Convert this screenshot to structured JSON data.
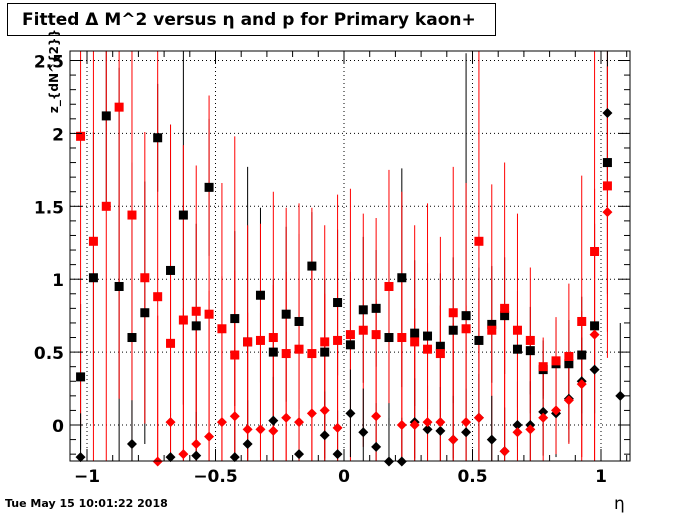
{
  "chart_data": {
    "type": "scatter",
    "title": "Fitted Δ M^2 versus η and p for Primary kaon+",
    "xlabel": "η",
    "ylabel": "z_{dN^{2}}",
    "xlim": [
      -1.05,
      1.1
    ],
    "ylim": [
      -0.25,
      2.57
    ],
    "grid": true,
    "xticks": [
      -1,
      -0.5,
      0,
      0.5,
      1
    ],
    "xtick_labels": [
      "−1",
      "−0.5",
      "0",
      "0.5",
      "1"
    ],
    "yticks": [
      0,
      0.5,
      1,
      1.5,
      2,
      2.5
    ],
    "ytick_labels": [
      "0",
      "0.5",
      "1",
      "1.5",
      "2",
      "2.5"
    ],
    "series": [
      {
        "marker": "square",
        "color": "#000000",
        "x": [
          -1.025,
          -0.975,
          -0.925,
          -0.875,
          -0.825,
          -0.775,
          -0.725,
          -0.675,
          -0.625,
          -0.575,
          -0.525,
          -0.425,
          -0.375,
          -0.325,
          -0.275,
          -0.225,
          -0.175,
          -0.125,
          -0.075,
          -0.025,
          0.025,
          0.075,
          0.125,
          0.175,
          0.225,
          0.275,
          0.325,
          0.375,
          0.425,
          0.475,
          0.525,
          0.575,
          0.625,
          0.675,
          0.725,
          0.775,
          0.825,
          0.875,
          0.925,
          0.975,
          1.025
        ],
        "y": [
          0.33,
          1.01,
          2.12,
          0.95,
          0.6,
          0.77,
          1.97,
          1.06,
          1.44,
          0.68,
          1.63,
          0.73,
          0.57,
          0.89,
          0.5,
          0.76,
          0.71,
          1.09,
          0.5,
          0.84,
          0.55,
          0.79,
          0.8,
          0.6,
          1.01,
          0.63,
          0.61,
          0.54,
          0.65,
          0.75,
          0.58,
          0.69,
          0.75,
          0.52,
          0.51,
          0.38,
          0.42,
          0.42,
          0.48,
          0.68,
          1.8
        ],
        "err": [
          0.5,
          1.0,
          0.6,
          1.5,
          1.2,
          0.9,
          0.37,
          1.0,
          1.3,
          0.7,
          0.47,
          0.6,
          1.2,
          0.6,
          0.5,
          0.6,
          0.6,
          0.37,
          0.5,
          0.5,
          0.5,
          0.5,
          0.4,
          0.6,
          0.75,
          0.5,
          0.5,
          0.5,
          0.5,
          1.8,
          0.5,
          0.4,
          0.4,
          0.4,
          0.3,
          0.2,
          0.3,
          0.3,
          0.4,
          0.7,
          0.9
        ]
      },
      {
        "marker": "square",
        "color": "#ff0000",
        "x": [
          -1.025,
          -0.975,
          -0.925,
          -0.875,
          -0.825,
          -0.775,
          -0.725,
          -0.675,
          -0.625,
          -0.575,
          -0.525,
          -0.475,
          -0.425,
          -0.375,
          -0.325,
          -0.275,
          -0.225,
          -0.175,
          -0.125,
          -0.075,
          -0.025,
          0.025,
          0.075,
          0.125,
          0.175,
          0.225,
          0.275,
          0.325,
          0.375,
          0.425,
          0.475,
          0.525,
          0.575,
          0.625,
          0.675,
          0.725,
          0.775,
          0.825,
          0.875,
          0.925,
          0.975,
          1.025
        ],
        "y": [
          1.98,
          1.26,
          1.5,
          2.18,
          1.44,
          1.01,
          0.88,
          0.56,
          0.72,
          0.78,
          0.76,
          0.66,
          0.48,
          0.57,
          0.58,
          0.6,
          0.49,
          0.52,
          0.49,
          0.57,
          0.58,
          0.62,
          0.65,
          0.62,
          0.95,
          0.6,
          0.57,
          0.52,
          0.49,
          0.77,
          0.66,
          1.26,
          0.65,
          0.8,
          0.65,
          0.58,
          0.4,
          0.44,
          0.47,
          0.71,
          1.19,
          1.64
        ],
        "err": [
          2.0,
          2.0,
          2.0,
          2.0,
          2.0,
          1.0,
          2.0,
          1.5,
          1.2,
          1.0,
          1.5,
          1.0,
          1.5,
          0.8,
          0.8,
          1.0,
          1.0,
          1.0,
          1.0,
          0.8,
          1.0,
          1.0,
          0.8,
          0.8,
          0.8,
          1.0,
          0.8,
          1.0,
          0.8,
          1.0,
          1.0,
          1.5,
          1.0,
          1.0,
          0.8,
          0.5,
          0.2,
          0.3,
          0.5,
          1.0,
          1.5,
          1.0
        ]
      },
      {
        "marker": "diamond",
        "color": "#000000",
        "x": [
          -1.025,
          -0.825,
          -0.675,
          -0.575,
          -0.425,
          -0.375,
          -0.275,
          -0.175,
          -0.075,
          -0.025,
          0.025,
          0.075,
          0.125,
          0.175,
          0.225,
          0.275,
          0.325,
          0.375,
          0.425,
          0.475,
          0.525,
          0.575,
          0.625,
          0.675,
          0.725,
          0.775,
          0.825,
          0.875,
          0.925,
          0.975,
          1.025,
          1.075
        ],
        "y": [
          -0.22,
          -0.13,
          -0.22,
          -0.21,
          -0.22,
          -0.13,
          0.03,
          -0.2,
          -0.07,
          -0.2,
          0.08,
          -0.05,
          -0.15,
          -0.25,
          -0.25,
          0.02,
          -0.03,
          -0.04,
          -0.1,
          -0.05,
          0.05,
          -0.1,
          -0.18,
          0.0,
          0.0,
          0.09,
          0.08,
          0.18,
          0.3,
          0.38,
          2.14,
          0.2
        ],
        "err": [
          0.3,
          0.3,
          0.3,
          0.3,
          0.3,
          0.3,
          0.3,
          0.3,
          0.3,
          0.3,
          0.3,
          0.3,
          0.3,
          0.3,
          0.3,
          0.3,
          0.3,
          0.3,
          0.3,
          0.3,
          0.3,
          0.3,
          0.3,
          0.3,
          0.3,
          0.3,
          0.3,
          0.3,
          0.3,
          0.3,
          0.5,
          0.5
        ]
      },
      {
        "marker": "diamond",
        "color": "#ff0000",
        "x": [
          -0.675,
          -0.625,
          -0.575,
          -0.525,
          -0.475,
          -0.425,
          -0.375,
          -0.325,
          -0.275,
          -0.225,
          -0.175,
          -0.125,
          -0.075,
          -0.025,
          0.125,
          0.225,
          0.275,
          0.325,
          0.375,
          0.425,
          0.475,
          0.525,
          0.625,
          0.675,
          0.725,
          0.775,
          0.825,
          0.875,
          0.925,
          0.975,
          1.025,
          -0.725
        ],
        "y": [
          0.02,
          -0.2,
          -0.13,
          -0.08,
          0.02,
          0.06,
          -0.03,
          -0.03,
          -0.04,
          0.05,
          0.02,
          0.08,
          0.1,
          -0.02,
          0.06,
          0.0,
          0.0,
          0.02,
          0.02,
          -0.1,
          0.02,
          0.05,
          -0.18,
          -0.05,
          -0.03,
          0.05,
          0.1,
          0.17,
          0.28,
          0.62,
          1.46,
          -0.25
        ],
        "err": [
          1.0,
          1.0,
          0.8,
          1.0,
          1.0,
          1.0,
          0.8,
          0.8,
          1.0,
          1.0,
          1.0,
          1.0,
          0.8,
          1.0,
          0.8,
          1.0,
          0.8,
          0.8,
          0.8,
          0.8,
          0.8,
          0.8,
          1.0,
          0.8,
          0.5,
          0.3,
          0.3,
          0.3,
          0.5,
          1.0,
          1.0,
          1.0
        ]
      }
    ]
  },
  "footer": {
    "timestamp": "Tue May 15 10:01:22 2018"
  }
}
